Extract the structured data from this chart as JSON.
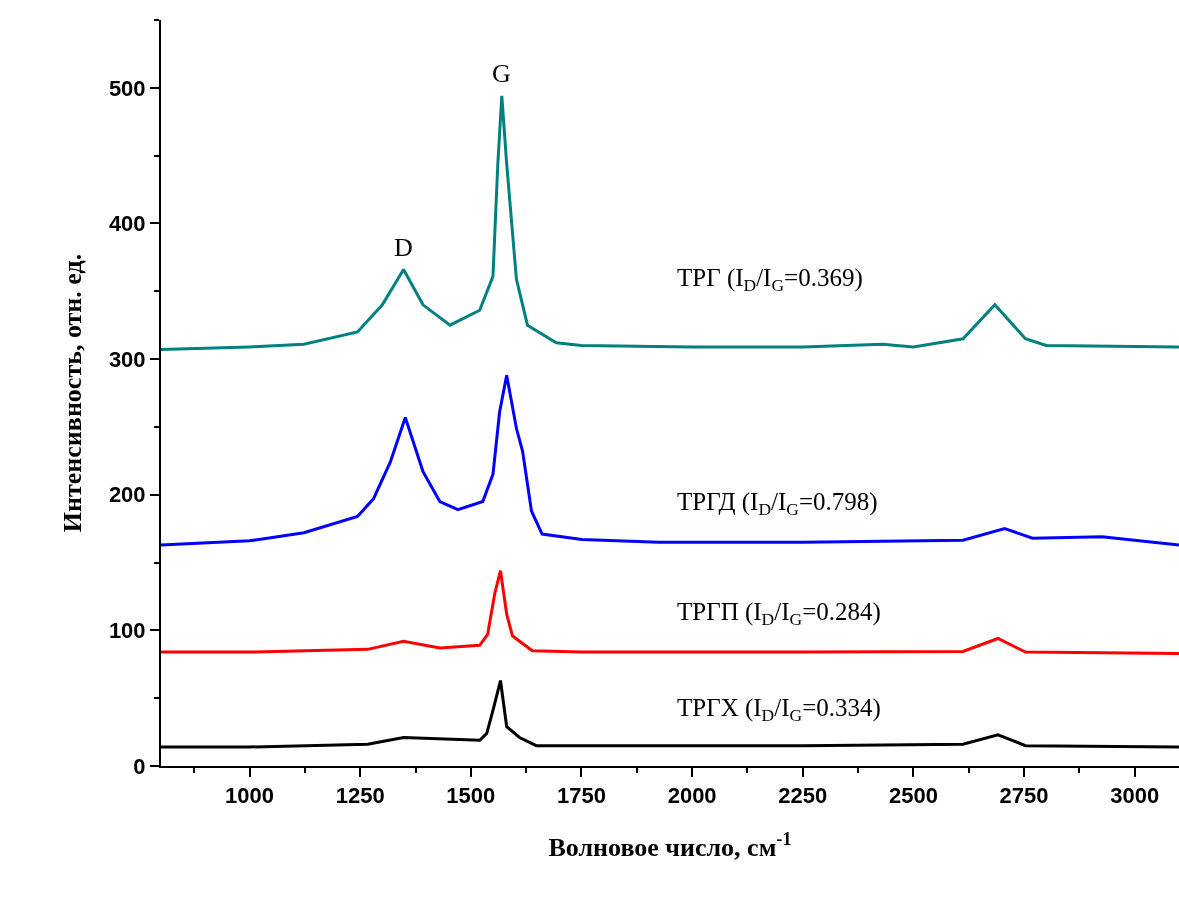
{
  "chart_data": {
    "type": "line",
    "xlabel": "Волновое число, см$^{-1}$",
    "ylabel": "Интенсивность, отн. ед.",
    "xlim": [
      800,
      3100
    ],
    "ylim": [
      0,
      550
    ],
    "xticks": [
      {
        "value": 875,
        "label": null
      },
      1000,
      {
        "value": 1125,
        "label": null
      },
      1250,
      {
        "value": 1375,
        "label": null
      },
      1500,
      {
        "value": 1625,
        "label": null
      },
      1750,
      {
        "value": 1875,
        "label": null
      },
      2000,
      {
        "value": 2125,
        "label": null
      },
      2250,
      {
        "value": 2375,
        "label": null
      },
      2500,
      {
        "value": 2625,
        "label": null
      },
      2750,
      {
        "value": 2875,
        "label": null
      },
      3000
    ],
    "yticks": [
      0,
      {
        "value": 50,
        "label": null
      },
      100,
      {
        "value": 150,
        "label": null
      },
      200,
      {
        "value": 250,
        "label": null
      },
      300,
      {
        "value": 350,
        "label": null
      },
      400,
      {
        "value": 450,
        "label": null
      },
      500,
      {
        "value": 550,
        "label": null
      }
    ],
    "grid": false,
    "legend": false,
    "marker": "none",
    "line_style": "solid",
    "series": [
      {
        "name": "ТРГ (I$_{D}$/I$_{G}$=0.369)",
        "color": "#008080",
        "x": [
          800,
          1000,
          1123,
          1244,
          1300,
          1348,
          1392,
          1453,
          1520,
          1550,
          1561,
          1570,
          1581,
          1603,
          1628,
          1693,
          1750,
          2000,
          2250,
          2430,
          2500,
          2612,
          2684,
          2753,
          2800,
          3100
        ],
        "values": [
          307,
          309,
          311,
          320,
          340,
          366,
          340,
          325,
          336,
          361,
          444,
          494,
          444,
          359,
          325,
          312,
          310,
          309,
          309,
          311,
          309,
          315,
          340,
          315,
          310,
          309
        ]
      },
      {
        "name": "ТРГД (I$_{D}$/I$_{G}$=0.798)",
        "color": "#0000ff",
        "x": [
          800,
          1000,
          1123,
          1244,
          1280,
          1318,
          1352,
          1392,
          1430,
          1471,
          1527,
          1550,
          1565,
          1581,
          1603,
          1617,
          1637,
          1661,
          1751,
          1924,
          2250,
          2612,
          2706,
          2769,
          2926,
          3100
        ],
        "values": [
          163,
          166,
          172,
          184,
          197,
          224,
          257,
          217,
          195,
          189,
          195,
          215,
          261,
          288,
          249,
          232,
          188,
          171,
          167,
          165,
          165,
          166.5,
          175,
          168,
          169,
          163
        ]
      },
      {
        "name": "ТРГП (I$_{D}$/I$_{G}$=0.284)",
        "color": "#ff0000",
        "x": [
          800,
          1000,
          1267,
          1348,
          1430,
          1520,
          1538,
          1554,
          1567,
          1581,
          1594,
          1610,
          1639,
          1750,
          2250,
          2612,
          2691,
          2753,
          3100
        ],
        "values": [
          84,
          84,
          86,
          92,
          87,
          89,
          97,
          127,
          144,
          112,
          96,
          92,
          85,
          84,
          84,
          84.5,
          94,
          84,
          83
        ]
      },
      {
        "name": "ТРГХ (I$_{D}$/I$_{G}$=0.334)",
        "color": "#000000",
        "x": [
          800,
          1000,
          1267,
          1348,
          1520,
          1536,
          1550,
          1567,
          1581,
          1610,
          1648,
          1750,
          2250,
          2612,
          2691,
          2753,
          3100
        ],
        "values": [
          14,
          14,
          16,
          21,
          19,
          24,
          41,
          63,
          29,
          21,
          15,
          15,
          15,
          16,
          23,
          15,
          14
        ]
      }
    ],
    "annotations": [
      {
        "text": "D",
        "x": 1348,
        "y": 366
      },
      {
        "text": "G",
        "x": 1570,
        "y": 494
      }
    ]
  }
}
